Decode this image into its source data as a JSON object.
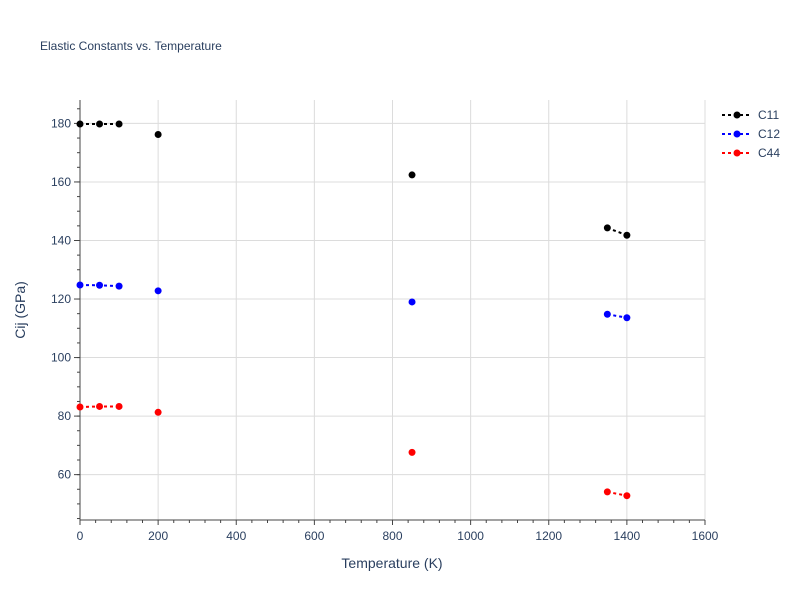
{
  "chart_data": {
    "type": "scatter",
    "title": "Elastic Constants vs. Temperature",
    "xlabel": "Temperature (K)",
    "ylabel": "Cij (GPa)",
    "xlim": [
      0,
      1600
    ],
    "ylim": [
      44.5,
      188
    ],
    "x_ticks": [
      0,
      200,
      400,
      600,
      800,
      1000,
      1200,
      1400,
      1600
    ],
    "y_ticks": [
      60,
      80,
      100,
      120,
      140,
      160,
      180
    ],
    "grid": true,
    "legend_position": "top-right",
    "line_style": "dotted",
    "series": [
      {
        "name": "C11",
        "color": "#000000",
        "segments": [
          [
            [
              0,
              179.8
            ],
            [
              50,
              179.8
            ],
            [
              100,
              179.8
            ]
          ],
          [
            [
              200,
              176.2
            ]
          ],
          [
            [
              850,
              162.4
            ]
          ],
          [
            [
              1350,
              144.3
            ],
            [
              1400,
              141.8
            ]
          ]
        ]
      },
      {
        "name": "C12",
        "color": "#0000ff",
        "segments": [
          [
            [
              0,
              124.8
            ],
            [
              50,
              124.7
            ],
            [
              100,
              124.4
            ]
          ],
          [
            [
              200,
              122.8
            ]
          ],
          [
            [
              850,
              119.0
            ]
          ],
          [
            [
              1350,
              114.8
            ],
            [
              1400,
              113.6
            ]
          ]
        ]
      },
      {
        "name": "C44",
        "color": "#ff0000",
        "segments": [
          [
            [
              0,
              83.1
            ],
            [
              50,
              83.3
            ],
            [
              100,
              83.3
            ]
          ],
          [
            [
              200,
              81.3
            ]
          ],
          [
            [
              850,
              67.6
            ]
          ],
          [
            [
              1350,
              54.1
            ],
            [
              1400,
              52.8
            ]
          ]
        ]
      }
    ]
  }
}
